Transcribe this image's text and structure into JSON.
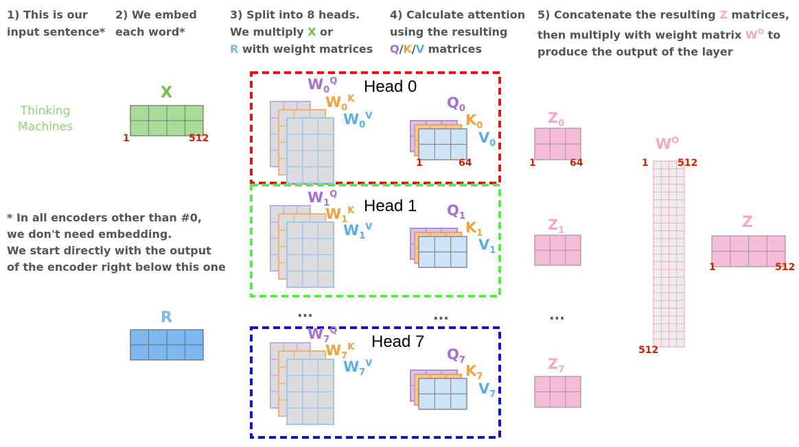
{
  "steps": {
    "s1": [
      "1) This is our",
      "input sentence*"
    ],
    "s2": [
      "2) We embed",
      "each word*"
    ],
    "s3": {
      "l1": "3) Split into 8 heads.",
      "l2a": "We multiply ",
      "l2x": "X",
      "l2b": " or",
      "l3r": "R",
      "l3b": " with weight matrices"
    },
    "s4": {
      "l1": "4) Calculate attention",
      "l2": "using the resulting",
      "q": "Q",
      "k": "K",
      "v": "V",
      "sep": "/",
      "l3b": " matrices"
    },
    "s5": {
      "l1a": "5) Concatenate the resulting ",
      "z": "Z",
      "l1b": " matrices,",
      "l2a": "then multiply with weight matrix ",
      "w": "W",
      "wsup": "O",
      "l2b": " to",
      "l3": "produce the output of the layer"
    }
  },
  "sentence": [
    "Thinking",
    "Machines"
  ],
  "note": [
    "* In all encoders other than #0,",
    "we don't need embedding.",
    "We start directly with the output",
    "of the encoder right below this one"
  ],
  "matrices": {
    "x": {
      "label": "X",
      "dim_start": "1",
      "dim_end": "512"
    },
    "r": {
      "label": "R"
    },
    "wo": {
      "label": "W",
      "sup": "O",
      "dim_start": "1",
      "dim_end": "512",
      "dim_bottom": "512"
    },
    "z_out": {
      "label": "Z",
      "dim_start": "1",
      "dim_end": "512"
    }
  },
  "heads": [
    {
      "title": "Head 0",
      "idx": "0",
      "qkv_dims": [
        "1",
        "64"
      ],
      "z_dims": [
        "1",
        "64"
      ]
    },
    {
      "title": "Head 1",
      "idx": "1"
    },
    {
      "title": "Head 7",
      "idx": "7"
    }
  ],
  "symbols": {
    "w": "W",
    "q": "Q",
    "k": "K",
    "v": "V",
    "z": "Z",
    "qsup": "Q",
    "ksup": "K",
    "vsup": "V"
  },
  "ellipsis": "...",
  "colors": {
    "x_fill": "#a8dc98",
    "r_fill": "#7eb8f0",
    "q_fill": "#d6c3ee",
    "k_fill": "#f9c796",
    "v_fill": "#cde3f7",
    "w_grey": "#dcdcdc",
    "z_fill": "#f6bcd7",
    "wo_fill": "#ededed",
    "head0_border": "#ee1111",
    "head1_border": "#55ee44",
    "head7_border": "#1111dd"
  }
}
